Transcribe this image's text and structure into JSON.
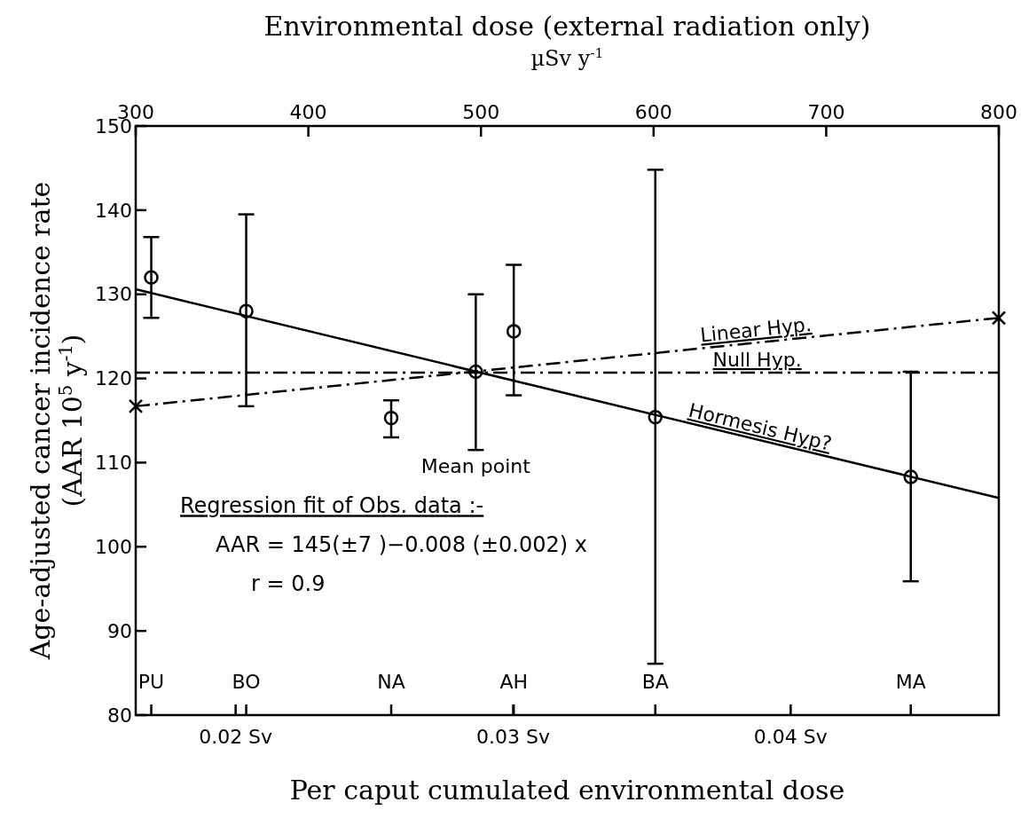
{
  "chart_data": {
    "type": "scatter",
    "title": "Environmental dose (external radiation only)",
    "xlabel": "µSv y$^{-1}$",
    "x2label": "Per caput cumulated environmental dose",
    "ylabel": "Age-adjusted cancer incidence rate\n(AAR 10$^{5}$ y$^{-1}$)",
    "xlim": [
      300,
      800
    ],
    "xticks": [
      300,
      400,
      500,
      600,
      700,
      800
    ],
    "x2lim": [
      0.0164,
      0.0475
    ],
    "x2ticks": [
      {
        "value": 0.02,
        "label": "0.02 Sv"
      },
      {
        "value": 0.03,
        "label": "0.03 Sv"
      },
      {
        "value": 0.04,
        "label": "0.04 Sv"
      }
    ],
    "ylim": [
      80,
      150
    ],
    "yticks": [
      80,
      90,
      100,
      110,
      120,
      130,
      140,
      150
    ],
    "grid": false,
    "legend": false,
    "series": [
      {
        "marker": "circle",
        "color": "#000000",
        "x": [
          309,
          364,
          448,
          519,
          601,
          749
        ],
        "values": [
          132,
          128,
          115.3,
          125.6,
          115.4,
          108.3
        ],
        "errors": [
          [
            127.2,
            136.8
          ],
          [
            116.7,
            139.5
          ],
          [
            113,
            117.4
          ],
          [
            118,
            133.5
          ],
          [
            86.1,
            144.8
          ],
          [
            95.9,
            120.8
          ]
        ]
      },
      {
        "marker": "circle",
        "color": "#000000",
        "x": [
          497
        ],
        "values": [
          120.8
        ],
        "errors": [
          [
            111.5,
            130
          ]
        ]
      },
      {
        "type": "line",
        "name": "Linear Hyp.",
        "line_style": "dashed",
        "marker": "cross",
        "color": "#000000",
        "x": [
          300,
          800
        ],
        "values": [
          116.7,
          127.2
        ]
      },
      {
        "type": "line",
        "name": "Null Hyp.",
        "line_style": "dashed",
        "marker": "none",
        "color": "#000000",
        "x": [
          300,
          800
        ],
        "values": [
          120.7,
          120.7
        ]
      },
      {
        "type": "line",
        "name": "Hormesis Hyp?",
        "line_style": "solid",
        "marker": "none",
        "color": "#000000",
        "x": [
          300,
          800
        ],
        "values": [
          130.6,
          105.8
        ]
      }
    ],
    "annotations": [
      "Mean point",
      "PU",
      "BO",
      "NA",
      "AH",
      "BA",
      "MA",
      "Regression fit of Obs. data :-",
      "AAR = 145(±7 )−0.008 (±0.002) x",
      "r = 0.9"
    ]
  }
}
